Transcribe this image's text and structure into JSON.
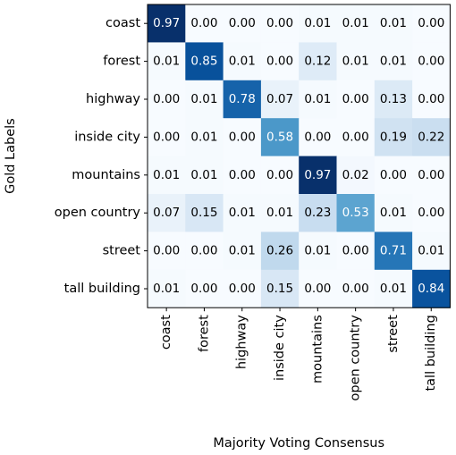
{
  "chart_data": {
    "type": "heatmap",
    "title": "",
    "xlabel": "Majority Voting Consensus",
    "ylabel": "Gold Labels",
    "rows": [
      "coast",
      "forest",
      "highway",
      "inside city",
      "mountains",
      "open country",
      "street",
      "tall building"
    ],
    "columns": [
      "coast",
      "forest",
      "highway",
      "inside city",
      "mountains",
      "open country",
      "street",
      "tall building"
    ],
    "values": [
      [
        0.97,
        0.0,
        0.0,
        0.0,
        0.01,
        0.01,
        0.01,
        0.0
      ],
      [
        0.01,
        0.85,
        0.01,
        0.0,
        0.12,
        0.01,
        0.01,
        0.0
      ],
      [
        0.0,
        0.01,
        0.78,
        0.07,
        0.01,
        0.0,
        0.13,
        0.0
      ],
      [
        0.0,
        0.01,
        0.0,
        0.58,
        0.0,
        0.0,
        0.19,
        0.22
      ],
      [
        0.01,
        0.01,
        0.0,
        0.0,
        0.97,
        0.02,
        0.0,
        0.0
      ],
      [
        0.07,
        0.15,
        0.01,
        0.01,
        0.23,
        0.53,
        0.01,
        0.0
      ],
      [
        0.0,
        0.0,
        0.01,
        0.26,
        0.01,
        0.0,
        0.71,
        0.01
      ],
      [
        0.01,
        0.0,
        0.0,
        0.15,
        0.0,
        0.0,
        0.01,
        0.84
      ]
    ],
    "value_format": "2 decimals",
    "colormap": "Blues",
    "colormap_stops": [
      "#f7fbff",
      "#deebf7",
      "#c6dbef",
      "#9ecae1",
      "#6baed6",
      "#4292c6",
      "#2171b5",
      "#08519c",
      "#08306b"
    ],
    "vmin": 0,
    "vmax": 0.97,
    "text_color_dark": "#000000",
    "text_color_light": "#ffffff"
  }
}
